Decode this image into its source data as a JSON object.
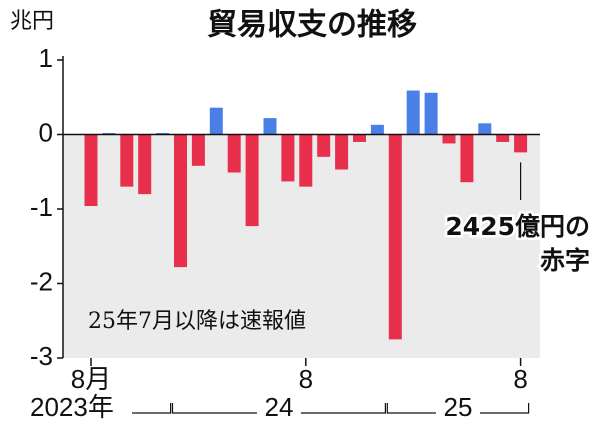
{
  "chart_data": {
    "type": "bar",
    "title": "貿易収支の推移",
    "y_unit": "兆円",
    "categories": [
      "8月",
      null,
      null,
      null,
      null,
      null,
      null,
      null,
      null,
      null,
      null,
      null,
      "8",
      null,
      null,
      null,
      null,
      null,
      null,
      null,
      null,
      null,
      null,
      null,
      "8"
    ],
    "year_labels": [
      "2023年",
      "24",
      "25"
    ],
    "values": [
      -0.96,
      0.02,
      -0.7,
      -0.8,
      0.02,
      -1.78,
      -0.42,
      0.36,
      -0.51,
      -1.23,
      0.22,
      -0.63,
      -0.7,
      -0.3,
      -0.47,
      -0.1,
      0.13,
      -2.75,
      0.59,
      0.56,
      -0.12,
      -0.64,
      0.15,
      -0.1,
      -0.24
    ],
    "positive_color": "#4a7fe6",
    "negative_color": "#e8304c",
    "ylim": [
      -3,
      1
    ],
    "yticks": [
      1,
      0,
      -1,
      -2,
      -3
    ],
    "note": "25年7月以降は速報値",
    "annotation": [
      "2425億円の",
      "赤字"
    ]
  }
}
